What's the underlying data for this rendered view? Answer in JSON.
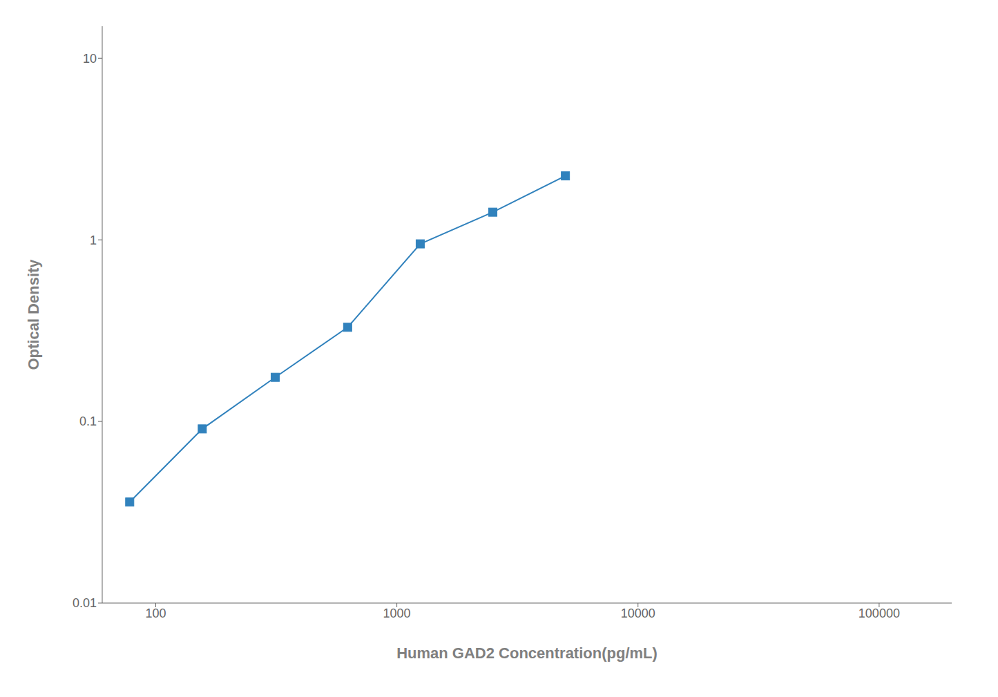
{
  "chart_data": {
    "type": "line",
    "x": [
      78,
      156,
      313,
      625,
      1250,
      2500,
      5000
    ],
    "values": [
      0.036,
      0.091,
      0.175,
      0.33,
      0.95,
      1.42,
      2.25
    ],
    "xlabel": "Human GAD2 Concentration(pg/mL)",
    "ylabel": "Optical Density",
    "xlim": [
      60,
      200000
    ],
    "ylim": [
      0.01,
      15
    ],
    "xticks": [
      100,
      1000,
      10000,
      100000
    ],
    "yticks": [
      0.01,
      0.1,
      1,
      10
    ],
    "log": true,
    "grid": false,
    "marker": "square"
  }
}
